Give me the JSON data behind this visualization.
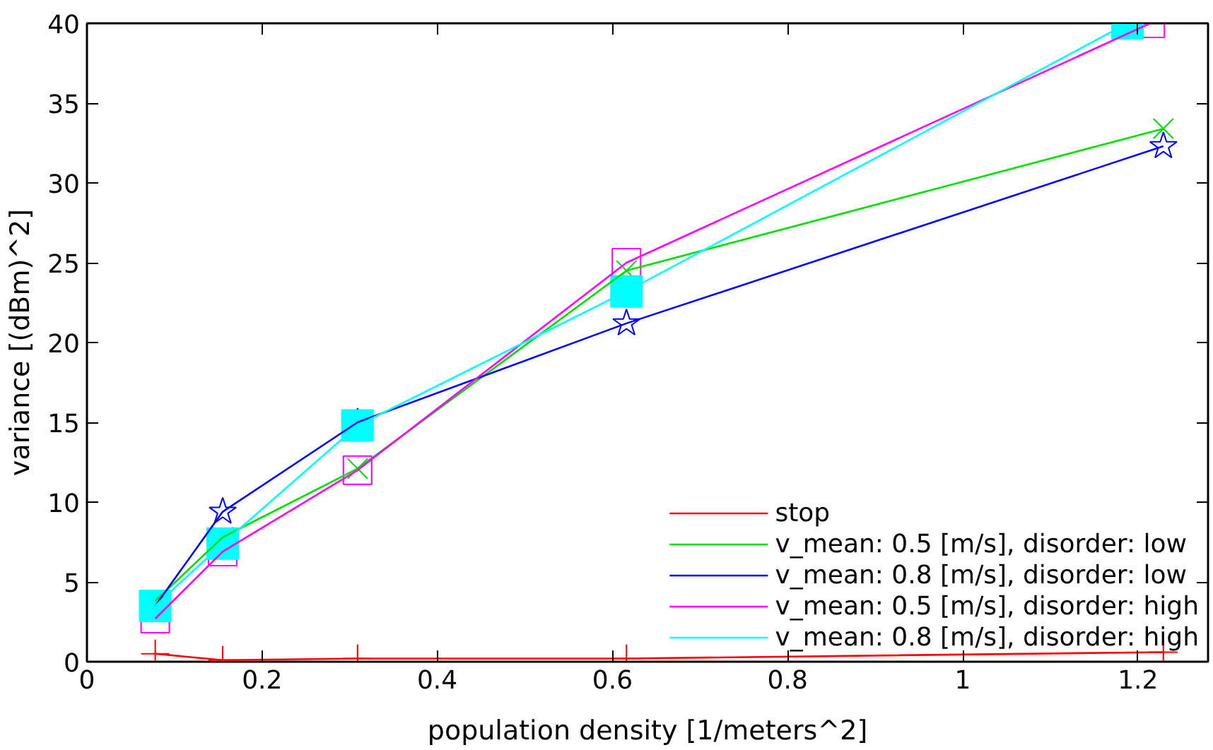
{
  "chart_data": {
    "type": "line",
    "xlabel": "population density [1/meters^2]",
    "ylabel": "variance [(dBm)^2]",
    "x": [
      0.078,
      0.155,
      0.309,
      0.616,
      1.229
    ],
    "xlim": [
      0,
      1.28
    ],
    "xticks": [
      0,
      0.2,
      0.4,
      0.6,
      0.8,
      1,
      1.2
    ],
    "ylim": [
      0,
      40
    ],
    "yticks": [
      0,
      5,
      10,
      15,
      20,
      25,
      30,
      35,
      40
    ],
    "grid": false,
    "legend": "bottom right",
    "series": [
      {
        "name": "stop",
        "color": "#ff0000",
        "marker": "cross",
        "values": [
          0.5,
          0.1,
          0.2,
          0.2,
          0.6
        ]
      },
      {
        "name": "v_mean: 0.5 [m/s], disorder: low",
        "color": "#00e000",
        "marker": "x",
        "values": [
          3.8,
          7.8,
          12.1,
          24.5,
          33.4
        ]
      },
      {
        "name": "v_mean: 0.8 [m/s], disorder: low",
        "color": "#0000ff",
        "marker": "star",
        "values": [
          3.5,
          9.4,
          15.0,
          21.2,
          32.3
        ]
      },
      {
        "name": "v_mean: 0.5 [m/s], disorder: high",
        "color": "#ff00ff",
        "marker": "square",
        "x": [
          0.078,
          0.155,
          0.309,
          0.616,
          1.214
        ],
        "values": [
          2.7,
          6.9,
          12.0,
          25.0,
          40
        ]
      },
      {
        "name": "v_mean: 0.8 [m/s], disorder: high",
        "color": "#00ffff",
        "marker": "square_filled",
        "x": [
          0.078,
          0.155,
          0.309,
          0.616,
          1.188
        ],
        "values": [
          3.5,
          7.4,
          14.8,
          23.2,
          40
        ]
      }
    ]
  }
}
